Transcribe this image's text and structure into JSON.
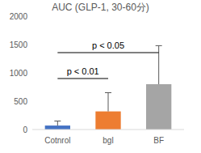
{
  "chart_data": {
    "type": "bar",
    "title": "AUC (GLP-1, 30-60分)",
    "categories": [
      "Cotnrol",
      "bgl",
      "BF"
    ],
    "values": [
      70,
      320,
      800
    ],
    "errors": [
      80,
      330,
      680
    ],
    "colors": [
      "#4472c4",
      "#ed7d31",
      "#a5a5a5"
    ],
    "ylim": [
      0,
      2000
    ],
    "yticks": [
      0,
      500,
      1000,
      1500,
      2000
    ],
    "grid": false,
    "annotations": [
      {
        "text": "p < 0.01",
        "categories": [
          "Cotnrol",
          "bgl"
        ]
      },
      {
        "text": "p < 0.05",
        "categories": [
          "Cotnrol",
          "BF"
        ]
      }
    ]
  }
}
